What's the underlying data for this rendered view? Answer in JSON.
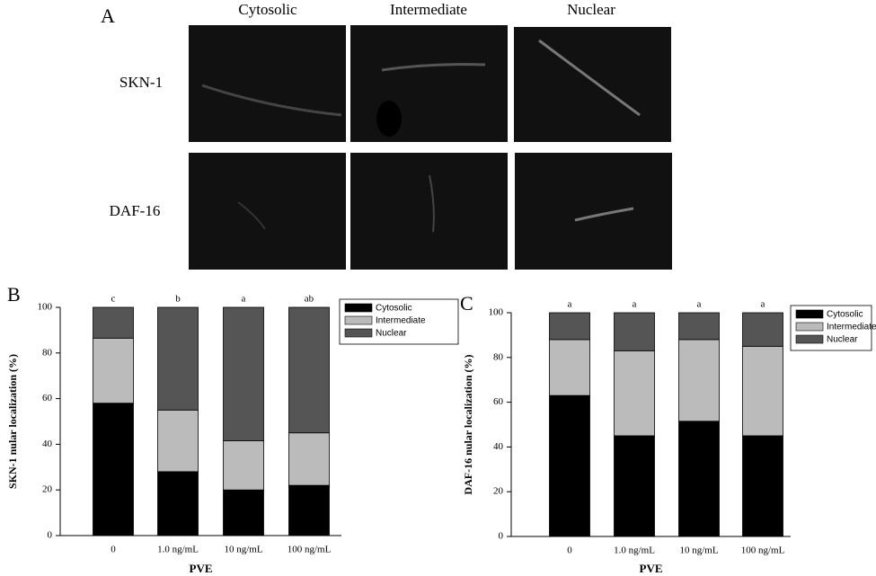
{
  "panel_a": {
    "label": "A",
    "columns": [
      "Cytosolic",
      "Intermediate",
      "Nuclear"
    ],
    "rows": [
      "SKN-1",
      "DAF-16"
    ]
  },
  "chart_data": [
    {
      "type": "stacked_bar",
      "panel": "B",
      "x_label": "PVE",
      "y_label": "SKN-1 nular localization (%)",
      "categories": [
        "0",
        "1.0 ng/mL",
        "10 ng/mL",
        "100 ng/mL"
      ],
      "annotations": [
        "c",
        "b",
        "a",
        "ab"
      ],
      "series": [
        {
          "name": "Cytosolic",
          "color": "#000000",
          "values": [
            58,
            28,
            20,
            22
          ]
        },
        {
          "name": "Intermediate",
          "color": "#bbbbbb",
          "values": [
            28.5,
            27,
            21.5,
            23
          ]
        },
        {
          "name": "Nuclear",
          "color": "#555555",
          "values": [
            13.5,
            45,
            58.5,
            55
          ]
        }
      ],
      "ylim": [
        0,
        100
      ],
      "yticks": [
        0,
        20,
        40,
        60,
        80,
        100
      ],
      "legend": "upper right"
    },
    {
      "type": "stacked_bar",
      "panel": "C",
      "x_label": "PVE",
      "y_label": "DAF-16 nular localization (%)",
      "categories": [
        "0",
        "1.0 ng/mL",
        "10 ng/mL",
        "100 ng/mL"
      ],
      "annotations": [
        "a",
        "a",
        "a",
        "a"
      ],
      "series": [
        {
          "name": "Cytosolic",
          "color": "#000000",
          "values": [
            63,
            45,
            51.5,
            45
          ]
        },
        {
          "name": "Intermediate",
          "color": "#bbbbbb",
          "values": [
            25,
            38,
            36.5,
            40
          ]
        },
        {
          "name": "Nuclear",
          "color": "#555555",
          "values": [
            12,
            17,
            12,
            15
          ]
        }
      ],
      "ylim": [
        0,
        100
      ],
      "yticks": [
        0,
        20,
        40,
        60,
        80,
        100
      ],
      "legend": "upper right"
    }
  ]
}
